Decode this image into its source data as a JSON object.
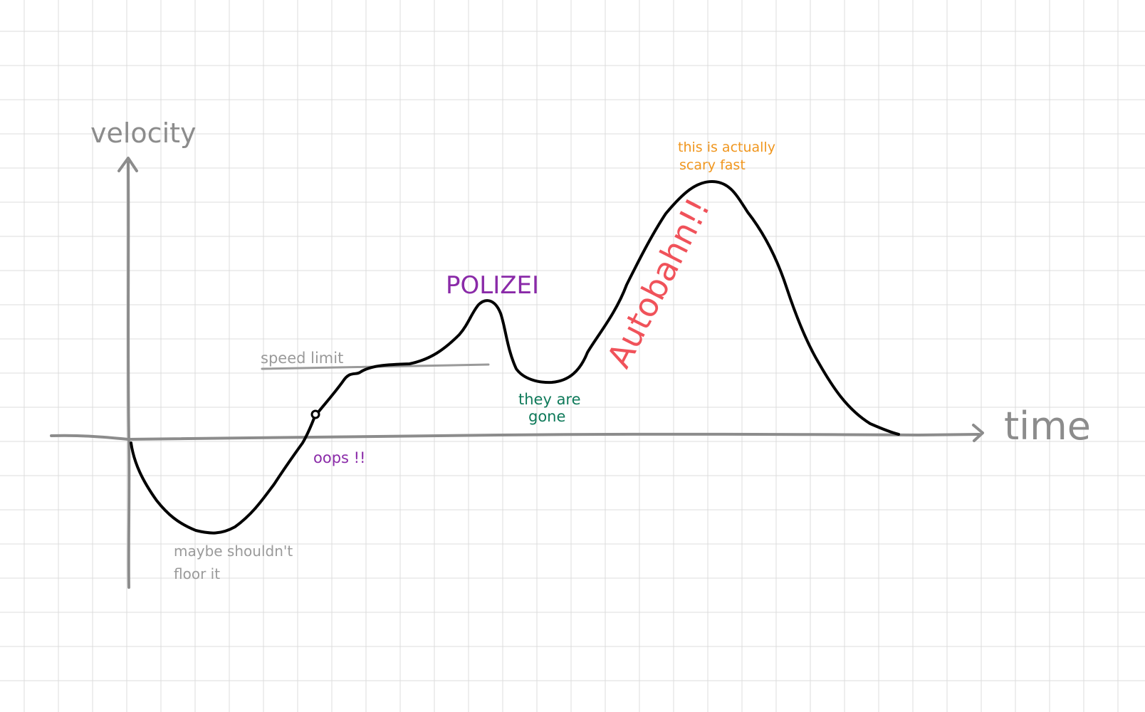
{
  "canvas": {
    "background_color": "#ffffff",
    "grid_color": "#dcdcdc",
    "grid": true
  },
  "axes": {
    "x_label": "time",
    "y_label": "velocity",
    "axis_color": "#8c8c8c"
  },
  "curve": {
    "color": "#000000"
  },
  "speed_limit": {
    "label": "speed limit",
    "color": "#9a9a9a"
  },
  "annotations": {
    "floor_it_line1": "maybe shouldn't",
    "floor_it_line2": "floor it",
    "oops": "oops !!",
    "polizei": "POLIZEI",
    "gone_line1": "they are",
    "gone_line2": "gone",
    "autobahn": "Autobahn!!",
    "scary_line1": "this is actually",
    "scary_line2": "scary fast"
  },
  "colors": {
    "gray_note": "#9a9a9a",
    "purple": "#8a2aa8",
    "green": "#0f7a5a",
    "red": "#f0525a",
    "orange": "#f0961e"
  }
}
